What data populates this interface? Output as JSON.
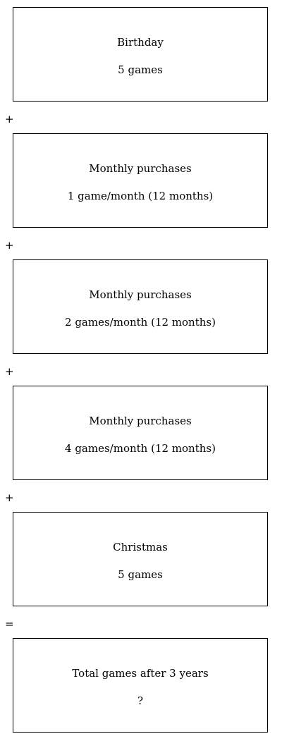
{
  "boxes": [
    {
      "label": "Birthday",
      "value": "5 games"
    },
    {
      "label": "Monthly purchases",
      "value": "1 game/month (12 months)"
    },
    {
      "label": "Monthly purchases",
      "value": "2 games/month (12 months)"
    },
    {
      "label": "Monthly purchases",
      "value": "4 games/month (12 months)"
    },
    {
      "label": "Christmas",
      "value": "5 games"
    },
    {
      "label": "Total games after 3 years",
      "value": "?"
    }
  ],
  "operators": [
    "+",
    "+",
    "+",
    "+",
    "="
  ]
}
